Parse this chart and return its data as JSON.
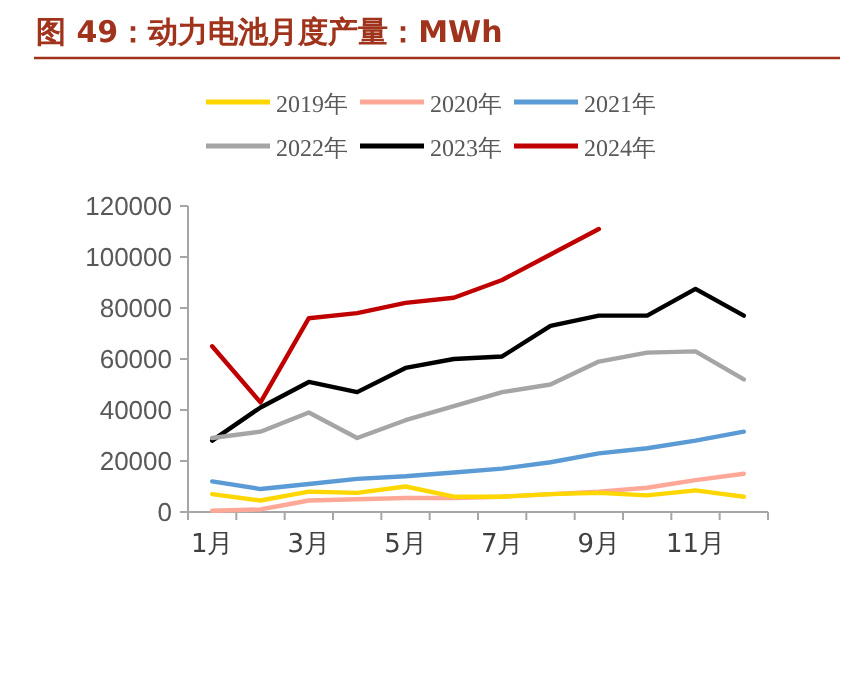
{
  "chart_data": {
    "type": "line",
    "title": "图 49：动力电池月度产量：MWh",
    "categories": [
      "1月",
      null,
      "3月",
      null,
      "5月",
      null,
      "7月",
      null,
      "9月",
      null,
      "11月",
      null
    ],
    "ylim": [
      0,
      120000
    ],
    "yticks": [
      0,
      20000,
      40000,
      60000,
      80000,
      100000,
      120000
    ],
    "grid": false,
    "legend": "top",
    "marker": "none",
    "line_style": "solid",
    "series": [
      {
        "name": "2019年",
        "color": "#ffd700",
        "values": [
          7000,
          4500,
          8000,
          7500,
          10000,
          6000,
          6000,
          7000,
          7500,
          6500,
          8500,
          6000
        ]
      },
      {
        "name": "2020年",
        "color": "#ffa898",
        "values": [
          500,
          1000,
          4500,
          5000,
          5500,
          5500,
          6000,
          7000,
          8000,
          9500,
          12500,
          15000
        ]
      },
      {
        "name": "2021年",
        "color": "#5b9bd5",
        "values": [
          12000,
          9000,
          11000,
          13000,
          14000,
          15500,
          17000,
          19500,
          23000,
          25000,
          28000,
          31500
        ]
      },
      {
        "name": "2022年",
        "color": "#a5a5a5",
        "values": [
          29000,
          31500,
          39000,
          29000,
          36000,
          41500,
          47000,
          50000,
          59000,
          62500,
          63000,
          52000
        ]
      },
      {
        "name": "2023年",
        "color": "#000000",
        "values": [
          28000,
          41000,
          51000,
          47000,
          56500,
          60000,
          61000,
          73000,
          77000,
          77000,
          87500,
          77000
        ]
      },
      {
        "name": "2024年",
        "color": "#c00000",
        "values": [
          65000,
          43000,
          76000,
          78000,
          82000,
          84000,
          91000,
          101000,
          111000,
          null,
          null,
          null
        ]
      }
    ]
  }
}
